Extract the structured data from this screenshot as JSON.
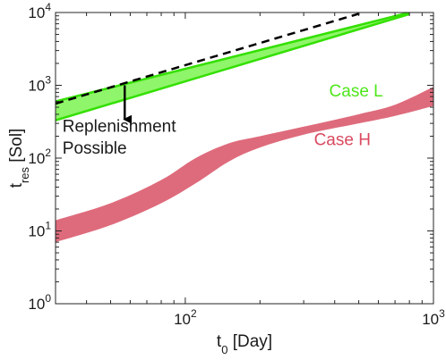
{
  "chart_data": {
    "type": "area",
    "x_scale": "log",
    "y_scale": "log",
    "xlim": [
      30,
      1000
    ],
    "ylim": [
      1,
      10000
    ],
    "xlabel": "t",
    "xlabel_sub": "0",
    "xlabel_unit": " [Day]",
    "ylabel": "t",
    "ylabel_sub": "res",
    "ylabel_unit": " [Sol]",
    "x_ticks": [
      {
        "value": 100,
        "base": "10",
        "exp": "2"
      },
      {
        "value": 1000,
        "base": "10",
        "exp": "3"
      }
    ],
    "y_ticks": [
      {
        "value": 1,
        "base": "10",
        "exp": "0"
      },
      {
        "value": 10,
        "base": "10",
        "exp": "1"
      },
      {
        "value": 100,
        "base": "10",
        "exp": "2"
      },
      {
        "value": 1000,
        "base": "10",
        "exp": "3"
      },
      {
        "value": 10000,
        "base": "10",
        "exp": "4"
      }
    ],
    "grid": false,
    "series": [
      {
        "name": "Case L",
        "type": "band",
        "fill": "#8ff56a",
        "edge": "#33e000",
        "x": [
          30,
          800
        ],
        "lower": [
          330,
          9500
        ],
        "upper": [
          600,
          10000
        ]
      },
      {
        "name": "Case H",
        "type": "band",
        "fill": "#de6b7c",
        "x": [
          30,
          50,
          80,
          110,
          150,
          200,
          300,
          500,
          700,
          1000
        ],
        "lower": [
          7,
          12,
          24,
          45,
          90,
          140,
          210,
          300,
          380,
          520
        ],
        "upper": [
          14,
          24,
          50,
          100,
          160,
          200,
          270,
          400,
          540,
          950
        ]
      },
      {
        "type": "dashed-line",
        "color": "#000000",
        "x": [
          30,
          520
        ],
        "y": [
          560,
          10000
        ]
      }
    ],
    "annotations": [
      {
        "text": "Case L",
        "color": "#4ee61a",
        "x": 380,
        "y": 700
      },
      {
        "text": "Case H",
        "color": "#d94a60",
        "x": 330,
        "y": 150
      },
      {
        "text": "Replenishment",
        "color": "#1a1a1a",
        "x": 32,
        "y": 230
      },
      {
        "text": "Possible",
        "color": "#1a1a1a",
        "x": 32,
        "y": 115
      }
    ],
    "arrow": {
      "x": 57,
      "y_from": 1000,
      "y_to": 340
    }
  }
}
